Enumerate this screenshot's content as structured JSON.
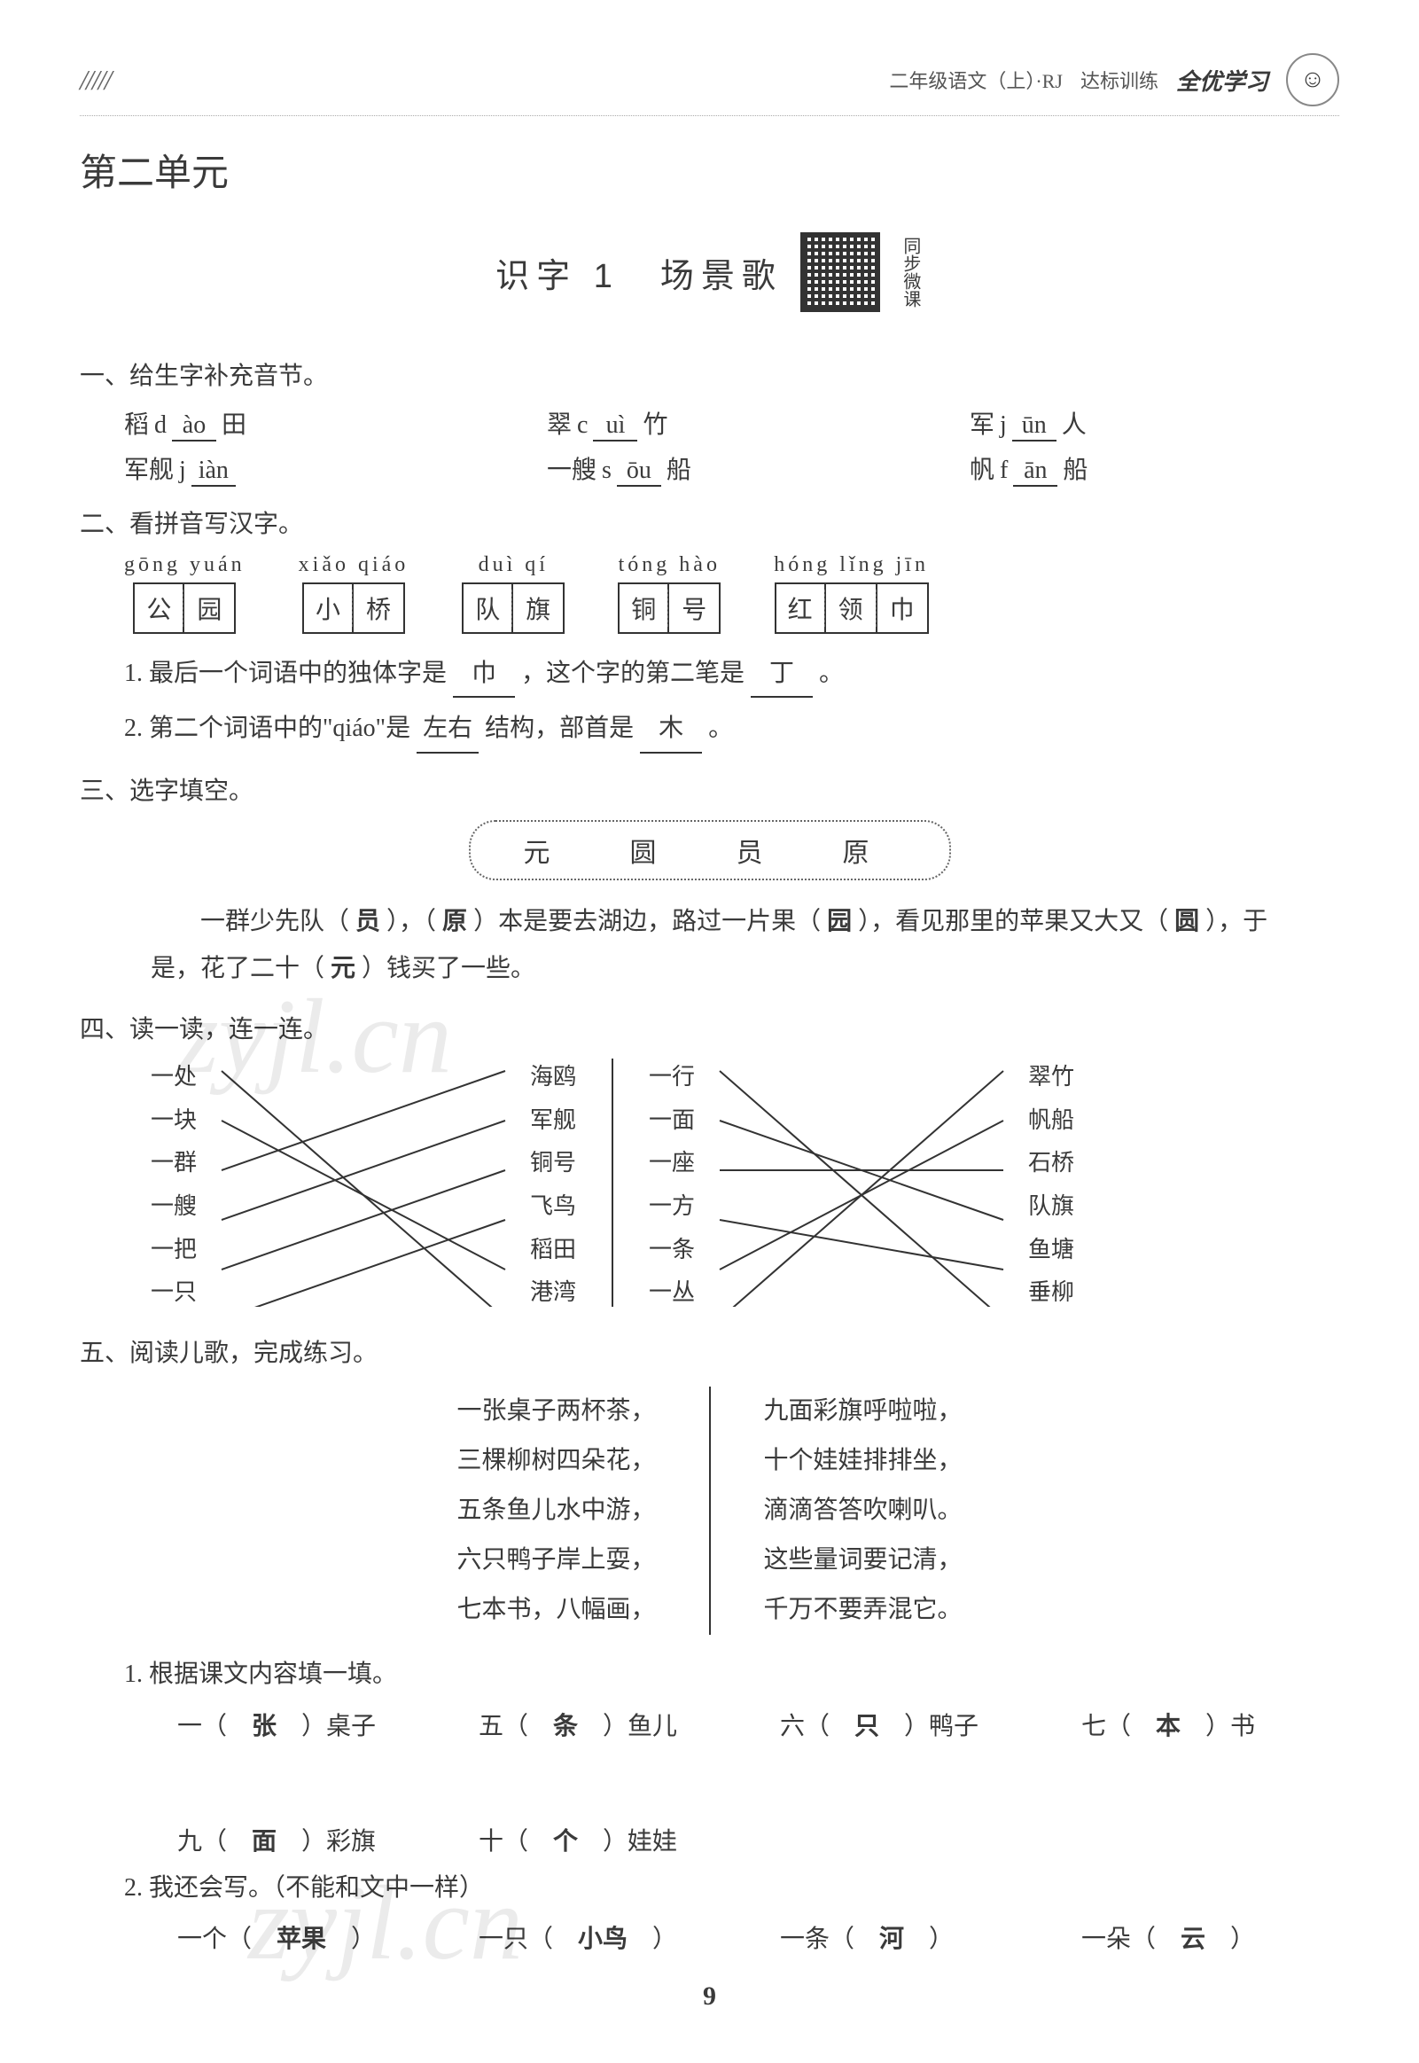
{
  "header": {
    "hatch": "/////",
    "subject": "二年级语文（上）·RJ",
    "series": "达标训练",
    "brand": "全优学习"
  },
  "unit_title": "第二单元",
  "lesson": {
    "title": "识字 1　场景歌",
    "qr_label": "同步微课"
  },
  "s1": {
    "head": "一、给生字补充音节。",
    "items": [
      {
        "char": "稻",
        "initial": "d",
        "final": "ào",
        "suffix": "田"
      },
      {
        "char": "翠",
        "initial": "c",
        "final": "uì",
        "suffix": "竹"
      },
      {
        "char": "军",
        "initial": "j",
        "final": "ūn",
        "suffix": "人"
      },
      {
        "char": "军舰",
        "initial": "j",
        "final": "iàn",
        "suffix": ""
      },
      {
        "char": "一艘",
        "initial": "s",
        "final": "ōu",
        "suffix": "船"
      },
      {
        "char": "帆",
        "initial": "f",
        "final": "ān",
        "suffix": "船"
      }
    ]
  },
  "s2": {
    "head": "二、看拼音写汉字。",
    "groups": [
      {
        "pinyin": "gōng yuán",
        "chars": [
          "公",
          "园"
        ]
      },
      {
        "pinyin": "xiǎo qiáo",
        "chars": [
          "小",
          "桥"
        ]
      },
      {
        "pinyin": "duì qí",
        "chars": [
          "队",
          "旗"
        ]
      },
      {
        "pinyin": "tóng hào",
        "chars": [
          "铜",
          "号"
        ]
      },
      {
        "pinyin": "hóng lǐng jīn",
        "chars": [
          "红",
          "领",
          "巾"
        ]
      }
    ],
    "q1_pre": "1. 最后一个词语中的独体字是",
    "q1_ans1": "巾",
    "q1_mid": "，这个字的第二笔是",
    "q1_ans2": "丁",
    "q1_end": "。",
    "q2_pre": "2. 第二个词语中的\"qiáo\"是",
    "q2_ans1": "左右",
    "q2_mid": "结构，部首是",
    "q2_ans2": "木",
    "q2_end": "。"
  },
  "s3": {
    "head": "三、选字填空。",
    "choices": "元　圆　员　原",
    "text_parts": [
      "一群少先队（",
      "员",
      "），（",
      "原",
      "）本是要去湖边，路过一片果（",
      "园",
      "），看见那里的苹果又大又（",
      "圆",
      "），于是，花了二十（",
      "元",
      "）钱买了一些。"
    ]
  },
  "s4": {
    "head": "四、读一读，连一连。",
    "left": {
      "a": [
        "一处",
        "一块",
        "一群",
        "一艘",
        "一把",
        "一只"
      ],
      "b": [
        "海鸥",
        "军舰",
        "铜号",
        "飞鸟",
        "稻田",
        "港湾"
      ],
      "links": [
        [
          0,
          5
        ],
        [
          1,
          4
        ],
        [
          2,
          0
        ],
        [
          3,
          1
        ],
        [
          4,
          2
        ],
        [
          5,
          3
        ]
      ]
    },
    "right": {
      "a": [
        "一行",
        "一面",
        "一座",
        "一方",
        "一条",
        "一丛"
      ],
      "b": [
        "翠竹",
        "帆船",
        "石桥",
        "队旗",
        "鱼塘",
        "垂柳"
      ],
      "links": [
        [
          0,
          5
        ],
        [
          1,
          3
        ],
        [
          2,
          2
        ],
        [
          3,
          4
        ],
        [
          4,
          1
        ],
        [
          5,
          0
        ]
      ]
    }
  },
  "s5": {
    "head": "五、阅读儿歌，完成练习。",
    "poem_left": [
      "一张桌子两杯茶，",
      "三棵柳树四朵花，",
      "五条鱼儿水中游，",
      "六只鸭子岸上耍，",
      "七本书，八幅画，"
    ],
    "poem_right": [
      "九面彩旗呼啦啦，",
      "十个娃娃排排坐，",
      "滴滴答答吹喇叭。",
      "这些量词要记清，",
      "千万不要弄混它。"
    ],
    "q1_head": "1. 根据课文内容填一填。",
    "q1_items": [
      {
        "pre": "一（",
        "ans": "张",
        "post": "）桌子"
      },
      {
        "pre": "五（",
        "ans": "条",
        "post": "）鱼儿"
      },
      {
        "pre": "六（",
        "ans": "只",
        "post": "）鸭子"
      },
      {
        "pre": "七（",
        "ans": "本",
        "post": "）书"
      },
      {
        "pre": "九（",
        "ans": "面",
        "post": "）彩旗"
      },
      {
        "pre": "十（",
        "ans": "个",
        "post": "）娃娃"
      }
    ],
    "q2_head": "2. 我还会写。（不能和文中一样）",
    "q2_items": [
      {
        "pre": "一个（",
        "ans": "苹果",
        "post": "）"
      },
      {
        "pre": "一只（",
        "ans": "小鸟",
        "post": "）"
      },
      {
        "pre": "一条（",
        "ans": "河",
        "post": "）"
      },
      {
        "pre": "一朵（",
        "ans": "云",
        "post": "）"
      }
    ]
  },
  "page_number": "9",
  "watermark": "zyjl.cn",
  "colors": {
    "text": "#3a3a3a",
    "border": "#333333",
    "bg": "#ffffff",
    "dash": "#666666"
  },
  "typography": {
    "body_size_pt": 28,
    "title_size_pt": 42,
    "font": "SimSun"
  }
}
